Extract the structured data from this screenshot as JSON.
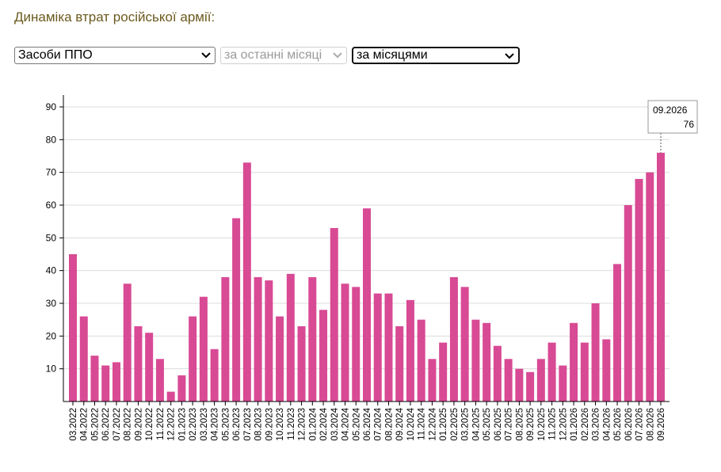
{
  "header": {
    "title": "Динаміка втрат російської армії:"
  },
  "controls": {
    "category_select": {
      "value": "Засоби ППО"
    },
    "period_select": {
      "value": "за останні місяці",
      "disabled": true
    },
    "grouping_select": {
      "value": "за місяцями"
    }
  },
  "colors": {
    "bar": "#d84a94",
    "grid": "#dcdcdc",
    "title": "#6b5a1e"
  },
  "chart_data": {
    "type": "bar",
    "categories": [
      "03.2022",
      "04.2022",
      "05.2022",
      "06.2022",
      "07.2022",
      "08.2022",
      "09.2022",
      "10.2022",
      "11.2022",
      "12.2022",
      "01.2023",
      "02.2023",
      "03.2023",
      "04.2023",
      "05.2023",
      "06.2023",
      "07.2023",
      "08.2023",
      "09.2023",
      "10.2023",
      "11.2023",
      "12.2023",
      "01.2024",
      "02.2024",
      "03.2024",
      "04.2024",
      "05.2024",
      "06.2024",
      "07.2024",
      "08.2024",
      "09.2024",
      "10.2024",
      "11.2024",
      "12.2024",
      "01.2025",
      "02.2025",
      "03.2025",
      "04.2025",
      "05.2025",
      "06.2025",
      "07.2025",
      "08.2025",
      "09.2025",
      "10.2025",
      "11.2025",
      "12.2025",
      "01.2026",
      "02.2026",
      "03.2026",
      "04.2026",
      "05.2026",
      "06.2026",
      "07.2026",
      "08.2026",
      "09.2026"
    ],
    "values": [
      45,
      26,
      14,
      11,
      12,
      36,
      23,
      21,
      13,
      3,
      8,
      26,
      32,
      16,
      38,
      56,
      73,
      38,
      37,
      26,
      39,
      23,
      38,
      28,
      53,
      36,
      35,
      59,
      33,
      33,
      23,
      31,
      25,
      13,
      18,
      38,
      35,
      25,
      24,
      17,
      13,
      10,
      9,
      13,
      18,
      11,
      24,
      18,
      30,
      19,
      42,
      60,
      68,
      70,
      76
    ],
    "ylim": [
      0,
      90
    ],
    "yticks": [
      10,
      20,
      30,
      40,
      50,
      60,
      70,
      80,
      90
    ],
    "grid": true,
    "tooltip": {
      "category": "09.2026",
      "value": "76"
    }
  }
}
